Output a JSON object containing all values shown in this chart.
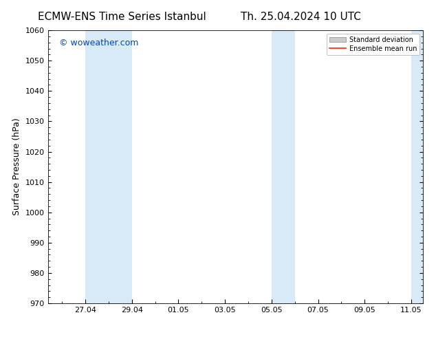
{
  "title_left": "ECMW-ENS Time Series Istanbul",
  "title_right": "Th. 25.04.2024 10 UTC",
  "ylabel": "Surface Pressure (hPa)",
  "ylim": [
    970,
    1060
  ],
  "yticks": [
    970,
    980,
    990,
    1000,
    1010,
    1020,
    1030,
    1040,
    1050,
    1060
  ],
  "xlabel_ticks": [
    "27.04",
    "29.04",
    "01.05",
    "03.05",
    "05.05",
    "07.05",
    "09.05",
    "11.05"
  ],
  "watermark": "© woweather.com",
  "watermark_color": "#0044bb",
  "band_color": "#d8eaf8",
  "legend_std_color": "#cccccc",
  "legend_mean_color": "#ff2200",
  "background_color": "#ffffff",
  "title_fontsize": 11,
  "axis_label_fontsize": 9,
  "tick_fontsize": 8,
  "legend_fontsize": 7,
  "watermark_fontsize": 9
}
